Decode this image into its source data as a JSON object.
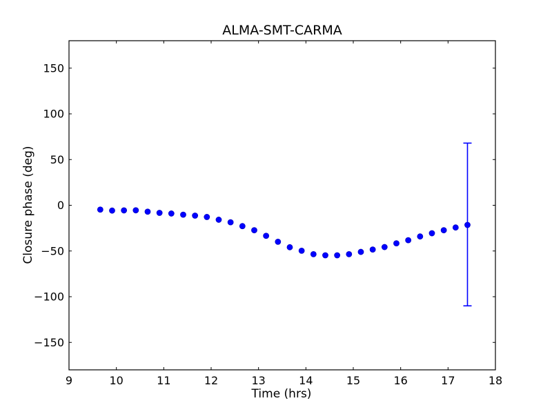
{
  "chart_data": {
    "type": "scatter",
    "title": "ALMA-SMT-CARMA",
    "xlabel": "Time (hrs)",
    "ylabel": "Closure phase (deg)",
    "xlim": [
      9,
      18
    ],
    "ylim": [
      -180,
      180
    ],
    "xticks": [
      9,
      10,
      11,
      12,
      13,
      14,
      15,
      16,
      17,
      18
    ],
    "yticks": [
      -150,
      -100,
      -50,
      0,
      50,
      100,
      150
    ],
    "grid": false,
    "legend": null,
    "marker_color": "#0000ff",
    "errorbar_color": "#0000ff",
    "frame_color": "#000000",
    "background_color": "#ffffff",
    "x": [
      9.66,
      9.91,
      10.16,
      10.41,
      10.66,
      10.91,
      11.16,
      11.41,
      11.66,
      11.91,
      12.16,
      12.41,
      12.66,
      12.91,
      13.16,
      13.41,
      13.66,
      13.91,
      14.16,
      14.41,
      14.66,
      14.91,
      15.16,
      15.41,
      15.66,
      15.91,
      16.16,
      16.41,
      16.66,
      16.91,
      17.16,
      17.41
    ],
    "y": [
      -4.7,
      -5.8,
      -5.6,
      -5.5,
      -7.0,
      -8.3,
      -9.0,
      -10.3,
      -11.3,
      -12.8,
      -15.8,
      -18.6,
      -22.8,
      -27.3,
      -33.4,
      -39.9,
      -45.9,
      -49.7,
      -53.5,
      -54.7,
      -54.7,
      -53.5,
      -51.0,
      -48.4,
      -45.7,
      -41.6,
      -38.2,
      -34.1,
      -30.6,
      -27.3,
      -24.3,
      -21.5
    ],
    "error_bar": {
      "x": 17.41,
      "y": -21.5,
      "y_low": -110,
      "y_high": 68
    }
  }
}
